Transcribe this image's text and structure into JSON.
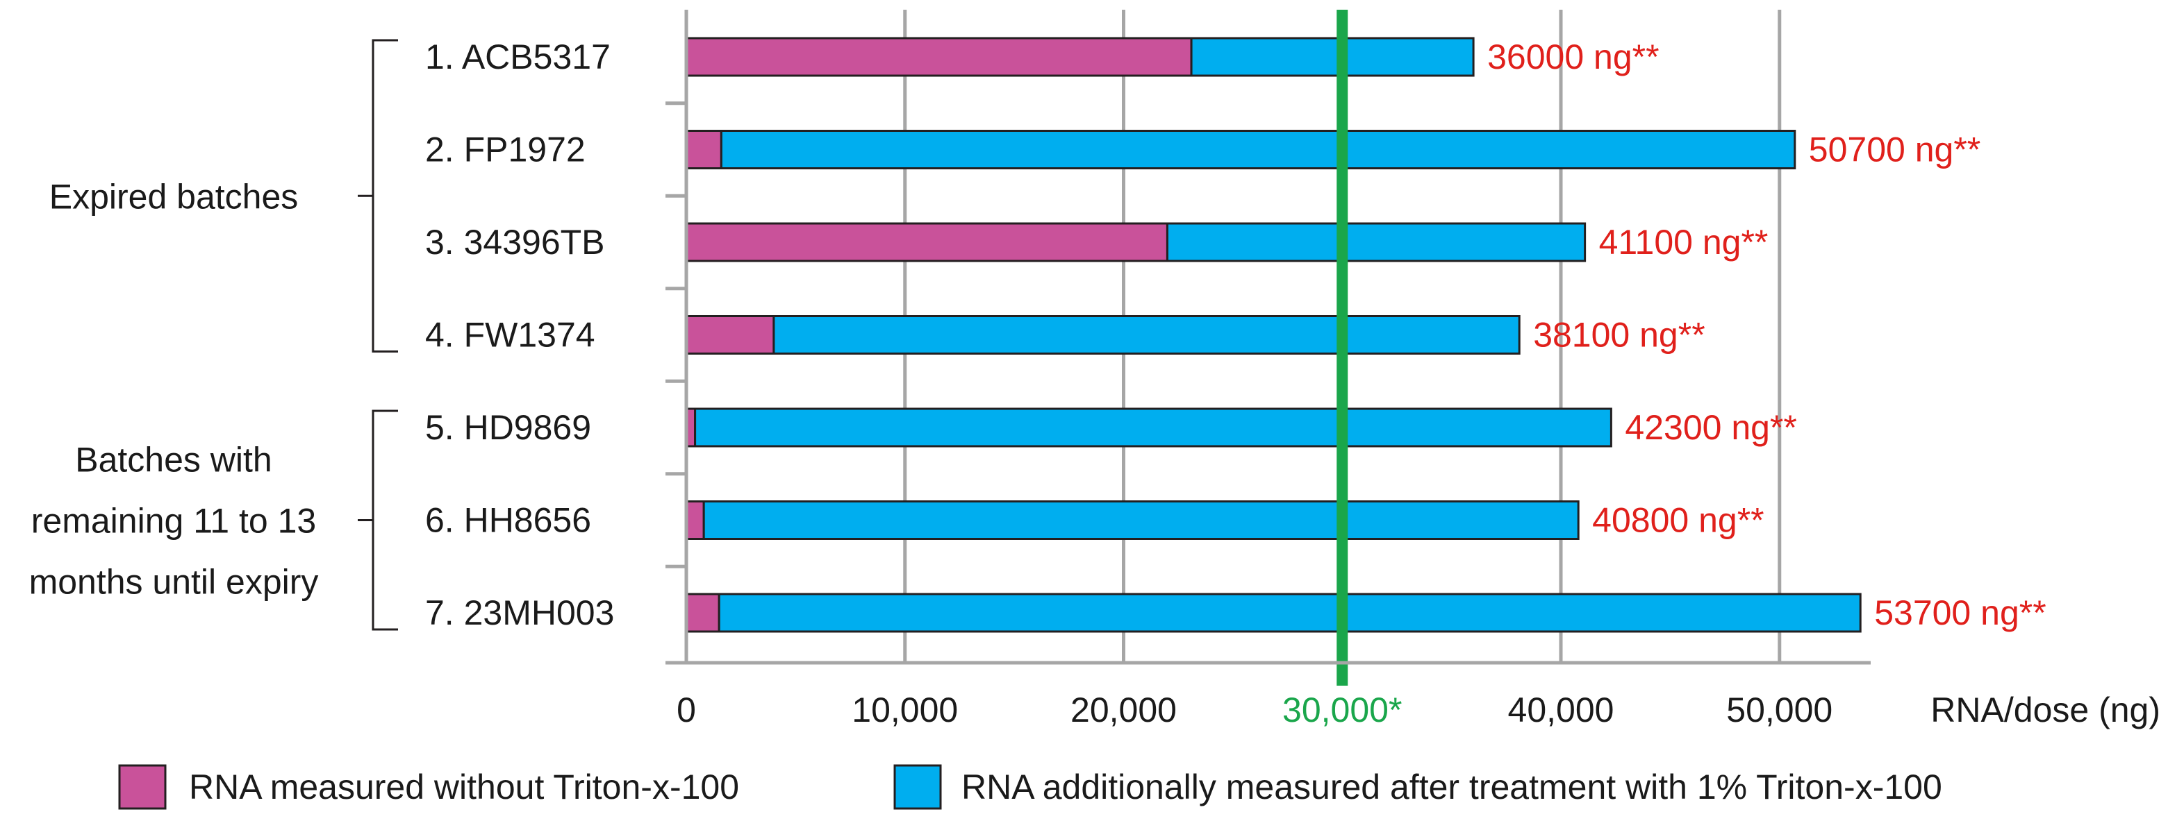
{
  "chart_data": {
    "type": "bar",
    "orientation": "horizontal",
    "stacked": true,
    "xlim": [
      0,
      55000
    ],
    "xticks": [
      {
        "value": 0,
        "label": "0",
        "color": "#1a1a1a"
      },
      {
        "value": 10000,
        "label": "10,000",
        "color": "#1a1a1a"
      },
      {
        "value": 20000,
        "label": "20,000",
        "color": "#1a1a1a"
      },
      {
        "value": 30000,
        "label": "30,000*",
        "color": "#1aa64b"
      },
      {
        "value": 40000,
        "label": "40,000",
        "color": "#1a1a1a"
      },
      {
        "value": 50000,
        "label": "50,000",
        "color": "#1a1a1a"
      }
    ],
    "xlabel": "RNA/dose (ng)",
    "grid": true,
    "threshold": {
      "value": 30000,
      "color": "#1aa64b"
    },
    "categories": [
      "1. ACB5317",
      "2. FP1972",
      "3. 34396TB",
      "4. FW1374",
      "5. HD9869",
      "6. HH8656",
      "7. 23MH003"
    ],
    "series": [
      {
        "name": "RNA measured without Triton-x-100",
        "color": "#c9529a",
        "values": [
          23100,
          1600,
          22000,
          4000,
          400,
          800,
          1500
        ]
      },
      {
        "name": "RNA additionally measured after treatment with 1% Triton-x-100",
        "color": "#00aeef",
        "values": [
          12900,
          49100,
          19100,
          34100,
          41900,
          40000,
          52200
        ]
      }
    ],
    "data_labels": [
      "36000 ng**",
      "50700 ng**",
      "41100 ng**",
      "38100 ng**",
      "42300 ng**",
      "40800 ng**",
      "53700 ng**"
    ],
    "data_label_color": "#e0201b",
    "groups": [
      {
        "label_lines": [
          "Expired batches"
        ],
        "first": 0,
        "last": 3
      },
      {
        "label_lines": [
          "Batches with",
          "remaining 11 to 13",
          "months until expiry"
        ],
        "first": 4,
        "last": 6
      }
    ]
  }
}
